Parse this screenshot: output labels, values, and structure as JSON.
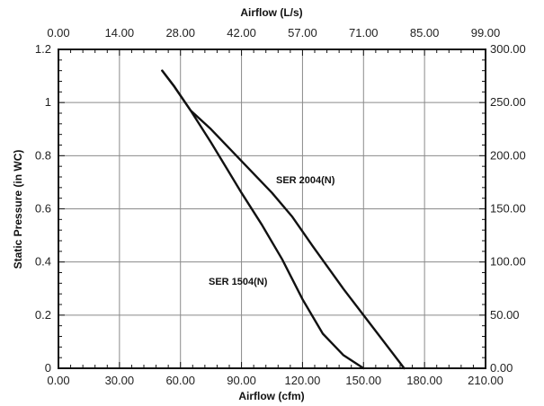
{
  "chart_data": {
    "type": "line",
    "xlabel_bottom": "Airflow (cfm)",
    "xlabel_top": "Airflow (L/s)",
    "ylabel_left": "Static Pressure (in WC)",
    "xlim": [
      0,
      210
    ],
    "ylim": [
      0,
      1.2
    ],
    "xticks_bottom": [
      "0.00",
      "30.00",
      "60.00",
      "90.00",
      "120.00",
      "150.00",
      "180.00",
      "210.00"
    ],
    "xticks_top": [
      "0.00",
      "14.00",
      "28.00",
      "42.00",
      "57.00",
      "71.00",
      "85.00",
      "99.00"
    ],
    "yticks_left": [
      "0",
      "0.2",
      "0.4",
      "0.6",
      "0.8",
      "1",
      "1.2"
    ],
    "yticks_right": [
      "0.00",
      "50.00",
      "100.00",
      "150.00",
      "200.00",
      "250.00",
      "300.00"
    ],
    "grid": true,
    "series": [
      {
        "name": "SER 1504(N)",
        "x": [
          51,
          57,
          65,
          75,
          90,
          100,
          110,
          120,
          130,
          140,
          150
        ],
        "y": [
          1.12,
          1.06,
          0.97,
          0.85,
          0.66,
          0.54,
          0.41,
          0.26,
          0.13,
          0.05,
          0.0
        ]
      },
      {
        "name": "SER 2004(N)",
        "x": [
          51,
          57,
          65,
          75,
          90,
          105,
          115,
          125,
          140,
          155,
          170
        ],
        "y": [
          1.12,
          1.06,
          0.97,
          0.9,
          0.78,
          0.66,
          0.57,
          0.46,
          0.3,
          0.15,
          0.0
        ]
      }
    ]
  }
}
